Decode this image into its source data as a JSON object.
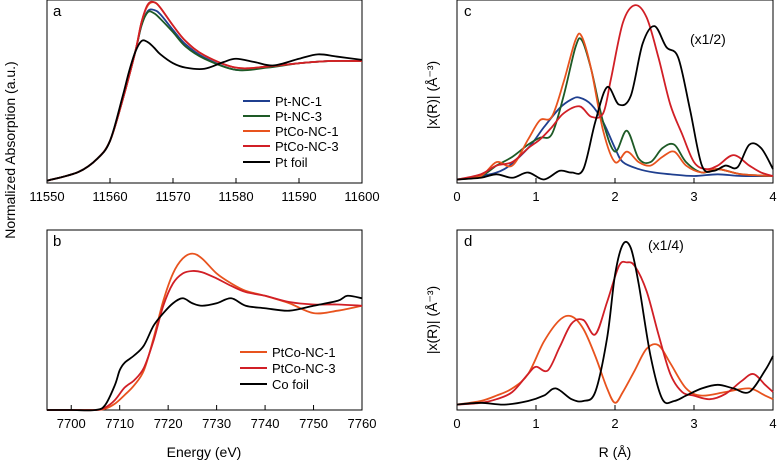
{
  "figure": {
    "shared_ylabel_left": "Normalized Absorption (a.u.)",
    "shared_xlabel_left": "Energy (eV)",
    "shared_xlabel_right": "R (Å)"
  },
  "colors": {
    "Pt-NC-1": "#1f3f8f",
    "Pt-NC-3": "#1e5a26",
    "PtCo-NC-1": "#e8531e",
    "PtCo-NC-3": "#d11f26",
    "Pt foil": "#000000",
    "Co foil": "#000000"
  },
  "chart_data": [
    {
      "panel": "a",
      "type": "line",
      "xlabel": "",
      "ylabel": "Normalized Absorption (a.u.)",
      "xlim": [
        11550,
        11600
      ],
      "ylim": [
        0,
        1.65
      ],
      "xticks": [
        11550,
        11560,
        11570,
        11580,
        11590,
        11600
      ],
      "legend": "bottom-right",
      "series": [
        {
          "name": "Pt-NC-1",
          "x": [
            11550,
            11555,
            11558,
            11560,
            11562,
            11564,
            11565,
            11566,
            11567,
            11568,
            11570,
            11572,
            11575,
            11580,
            11585,
            11590,
            11595,
            11600
          ],
          "y": [
            0.02,
            0.1,
            0.22,
            0.38,
            0.75,
            1.18,
            1.42,
            1.55,
            1.56,
            1.52,
            1.38,
            1.25,
            1.13,
            1.02,
            1.05,
            1.08,
            1.1,
            1.1
          ]
        },
        {
          "name": "Pt-NC-3",
          "x": [
            11550,
            11555,
            11558,
            11560,
            11562,
            11564,
            11565,
            11566,
            11567,
            11568,
            11570,
            11572,
            11575,
            11580,
            11585,
            11590,
            11595,
            11600
          ],
          "y": [
            0.02,
            0.1,
            0.22,
            0.38,
            0.75,
            1.18,
            1.42,
            1.54,
            1.53,
            1.48,
            1.36,
            1.23,
            1.12,
            1.02,
            1.04,
            1.08,
            1.1,
            1.1
          ]
        },
        {
          "name": "PtCo-NC-1",
          "x": [
            11550,
            11555,
            11558,
            11560,
            11562,
            11564,
            11565,
            11566,
            11567,
            11568,
            11570,
            11572,
            11575,
            11580,
            11585,
            11590,
            11595,
            11600
          ],
          "y": [
            0.02,
            0.1,
            0.22,
            0.38,
            0.75,
            1.18,
            1.45,
            1.6,
            1.63,
            1.58,
            1.42,
            1.28,
            1.15,
            1.04,
            1.05,
            1.08,
            1.1,
            1.1
          ]
        },
        {
          "name": "PtCo-NC-3",
          "x": [
            11550,
            11555,
            11558,
            11560,
            11562,
            11564,
            11565,
            11566,
            11567,
            11568,
            11570,
            11572,
            11575,
            11580,
            11585,
            11590,
            11595,
            11600
          ],
          "y": [
            0.02,
            0.1,
            0.22,
            0.38,
            0.75,
            1.18,
            1.45,
            1.61,
            1.63,
            1.58,
            1.42,
            1.28,
            1.15,
            1.04,
            1.05,
            1.08,
            1.1,
            1.1
          ]
        },
        {
          "name": "Pt foil",
          "x": [
            11550,
            11555,
            11558,
            11560,
            11562,
            11563,
            11564,
            11565,
            11566,
            11567,
            11568,
            11570,
            11572,
            11575,
            11578,
            11580,
            11583,
            11586,
            11590,
            11593,
            11596,
            11600
          ],
          "y": [
            0.02,
            0.1,
            0.22,
            0.38,
            0.78,
            1.0,
            1.18,
            1.28,
            1.27,
            1.22,
            1.16,
            1.08,
            1.04,
            1.03,
            1.09,
            1.12,
            1.09,
            1.06,
            1.12,
            1.16,
            1.14,
            1.11
          ]
        }
      ]
    },
    {
      "panel": "b",
      "type": "line",
      "xlabel": "Energy (eV)",
      "ylabel": "",
      "xlim": [
        7695,
        7760
      ],
      "ylim": [
        0,
        1.45
      ],
      "xticks": [
        7700,
        7710,
        7720,
        7730,
        7740,
        7750,
        7760
      ],
      "legend": "bottom-right",
      "series": [
        {
          "name": "PtCo-NC-1",
          "x": [
            7695,
            7700,
            7705,
            7707,
            7709,
            7711,
            7713,
            7715,
            7717,
            7719,
            7721,
            7723,
            7725,
            7727,
            7730,
            7733,
            7736,
            7740,
            7745,
            7750,
            7755,
            7760
          ],
          "y": [
            0.0,
            0.0,
            0.0,
            0.01,
            0.05,
            0.12,
            0.2,
            0.32,
            0.58,
            0.88,
            1.1,
            1.22,
            1.26,
            1.22,
            1.1,
            1.02,
            0.96,
            0.92,
            0.86,
            0.78,
            0.8,
            0.84
          ]
        },
        {
          "name": "PtCo-NC-3",
          "x": [
            7695,
            7700,
            7705,
            7707,
            7709,
            7711,
            7713,
            7715,
            7717,
            7719,
            7721,
            7723,
            7725,
            7727,
            7730,
            7733,
            7736,
            7740,
            7745,
            7750,
            7755,
            7760
          ],
          "y": [
            0.0,
            0.0,
            0.0,
            0.02,
            0.08,
            0.18,
            0.24,
            0.34,
            0.56,
            0.84,
            1.02,
            1.1,
            1.12,
            1.11,
            1.06,
            1.0,
            0.95,
            0.92,
            0.87,
            0.85,
            0.85,
            0.84
          ]
        },
        {
          "name": "Co foil",
          "x": [
            7695,
            7700,
            7705,
            7707,
            7709,
            7710,
            7711,
            7713,
            7715,
            7717,
            7719,
            7721,
            7723,
            7725,
            7727,
            7730,
            7733,
            7736,
            7740,
            7745,
            7750,
            7755,
            7757,
            7760
          ],
          "y": [
            0.0,
            0.0,
            0.0,
            0.04,
            0.2,
            0.32,
            0.38,
            0.44,
            0.52,
            0.68,
            0.78,
            0.86,
            0.9,
            0.86,
            0.84,
            0.86,
            0.9,
            0.84,
            0.82,
            0.8,
            0.84,
            0.88,
            0.92,
            0.9
          ]
        }
      ]
    },
    {
      "panel": "c",
      "type": "line",
      "xlabel": "",
      "ylabel": "|x(R)| (Å⁻³)",
      "xlim": [
        0,
        4
      ],
      "ylim": [
        0,
        1.05
      ],
      "xticks": [
        0,
        1,
        2,
        3,
        4
      ],
      "annotation": "(x1/2)",
      "series": [
        {
          "name": "Pt-NC-1",
          "x": [
            0,
            0.3,
            0.6,
            0.9,
            1.1,
            1.3,
            1.45,
            1.55,
            1.7,
            1.85,
            2.0,
            2.1,
            2.3,
            2.5,
            2.7,
            3.0,
            3.3,
            3.6,
            4.0
          ],
          "y": [
            0.02,
            0.04,
            0.08,
            0.2,
            0.32,
            0.43,
            0.48,
            0.49,
            0.45,
            0.35,
            0.2,
            0.12,
            0.08,
            0.06,
            0.05,
            0.04,
            0.05,
            0.04,
            0.04
          ]
        },
        {
          "name": "Pt-NC-3",
          "x": [
            0,
            0.3,
            0.5,
            0.7,
            0.9,
            1.05,
            1.2,
            1.35,
            1.5,
            1.58,
            1.7,
            1.85,
            2.0,
            2.15,
            2.3,
            2.45,
            2.6,
            2.75,
            2.9,
            3.1,
            3.3,
            3.6,
            4.0
          ],
          "y": [
            0.02,
            0.04,
            0.1,
            0.15,
            0.22,
            0.26,
            0.28,
            0.5,
            0.78,
            0.82,
            0.65,
            0.35,
            0.18,
            0.3,
            0.14,
            0.12,
            0.2,
            0.22,
            0.12,
            0.06,
            0.08,
            0.05,
            0.04
          ]
        },
        {
          "name": "PtCo-NC-1",
          "x": [
            0,
            0.3,
            0.5,
            0.7,
            0.9,
            1.05,
            1.2,
            1.35,
            1.5,
            1.58,
            1.7,
            1.85,
            2.0,
            2.15,
            2.3,
            2.45,
            2.6,
            2.75,
            2.9,
            3.1,
            3.3,
            3.6,
            4.0
          ],
          "y": [
            0.02,
            0.04,
            0.12,
            0.1,
            0.25,
            0.36,
            0.38,
            0.58,
            0.82,
            0.84,
            0.65,
            0.3,
            0.12,
            0.18,
            0.12,
            0.1,
            0.15,
            0.18,
            0.1,
            0.06,
            0.08,
            0.05,
            0.04
          ]
        },
        {
          "name": "PtCo-NC-3",
          "x": [
            0,
            0.3,
            0.5,
            0.7,
            0.9,
            1.05,
            1.2,
            1.35,
            1.55,
            1.7,
            1.85,
            1.95,
            2.1,
            2.25,
            2.4,
            2.55,
            2.7,
            2.85,
            3.0,
            3.15,
            3.3,
            3.5,
            3.7,
            3.85,
            4.0
          ],
          "y": [
            0.02,
            0.05,
            0.1,
            0.12,
            0.2,
            0.25,
            0.32,
            0.4,
            0.44,
            0.38,
            0.4,
            0.6,
            0.92,
            1.02,
            0.95,
            0.72,
            0.45,
            0.28,
            0.12,
            0.08,
            0.1,
            0.16,
            0.1,
            0.06,
            0.04
          ]
        },
        {
          "name": "Pt foil",
          "x": [
            0,
            0.3,
            0.5,
            0.7,
            0.9,
            1.1,
            1.3,
            1.45,
            1.6,
            1.75,
            1.9,
            2.05,
            2.2,
            2.35,
            2.5,
            2.65,
            2.8,
            2.95,
            3.1,
            3.25,
            3.4,
            3.55,
            3.7,
            3.85,
            4.0
          ],
          "y": [
            0.02,
            0.03,
            0.05,
            0.03,
            0.06,
            0.02,
            0.07,
            0.06,
            0.08,
            0.35,
            0.55,
            0.45,
            0.5,
            0.8,
            0.9,
            0.78,
            0.72,
            0.42,
            0.1,
            0.07,
            0.1,
            0.09,
            0.22,
            0.2,
            0.08
          ]
        }
      ]
    },
    {
      "panel": "d",
      "type": "line",
      "xlabel": "R (Å)",
      "ylabel": "|x(R)| (Å⁻³)",
      "xlim": [
        0,
        4
      ],
      "ylim": [
        0,
        1.0
      ],
      "xticks": [
        0,
        1,
        2,
        3,
        4
      ],
      "annotation": "(x1/4)",
      "series": [
        {
          "name": "PtCo-NC-1",
          "x": [
            0,
            0.3,
            0.5,
            0.7,
            0.9,
            1.1,
            1.3,
            1.45,
            1.6,
            1.75,
            1.9,
            2.0,
            2.1,
            2.25,
            2.4,
            2.55,
            2.7,
            2.9,
            3.1,
            3.4,
            3.7,
            3.9,
            4.0
          ],
          "y": [
            0.03,
            0.05,
            0.08,
            0.12,
            0.2,
            0.38,
            0.5,
            0.52,
            0.45,
            0.3,
            0.12,
            0.04,
            0.1,
            0.22,
            0.34,
            0.36,
            0.26,
            0.12,
            0.08,
            0.1,
            0.12,
            0.08,
            0.06
          ]
        },
        {
          "name": "PtCo-NC-3",
          "x": [
            0,
            0.3,
            0.5,
            0.7,
            0.9,
            1.0,
            1.15,
            1.3,
            1.45,
            1.6,
            1.75,
            1.9,
            2.05,
            2.15,
            2.25,
            2.4,
            2.55,
            2.7,
            2.85,
            3.0,
            3.2,
            3.4,
            3.6,
            3.75,
            3.9,
            4.0
          ],
          "y": [
            0.03,
            0.04,
            0.06,
            0.1,
            0.2,
            0.24,
            0.22,
            0.35,
            0.48,
            0.5,
            0.42,
            0.6,
            0.8,
            0.82,
            0.8,
            0.66,
            0.42,
            0.2,
            0.1,
            0.08,
            0.06,
            0.09,
            0.16,
            0.2,
            0.14,
            0.1
          ]
        },
        {
          "name": "Co foil",
          "x": [
            0,
            0.3,
            0.6,
            0.9,
            1.1,
            1.25,
            1.45,
            1.6,
            1.75,
            1.9,
            2.0,
            2.1,
            2.2,
            2.3,
            2.45,
            2.6,
            2.75,
            2.9,
            3.1,
            3.3,
            3.5,
            3.7,
            3.9,
            4.0
          ],
          "y": [
            0.03,
            0.04,
            0.03,
            0.05,
            0.08,
            0.12,
            0.06,
            0.05,
            0.1,
            0.4,
            0.75,
            0.92,
            0.9,
            0.7,
            0.3,
            0.06,
            0.05,
            0.08,
            0.12,
            0.14,
            0.12,
            0.1,
            0.22,
            0.3
          ]
        }
      ]
    }
  ],
  "panels": {
    "a": {
      "label": "a",
      "tick_labels": [
        "11550",
        "11560",
        "11570",
        "11580",
        "11590",
        "11600"
      ],
      "legend": [
        "Pt-NC-1",
        "Pt-NC-3",
        "PtCo-NC-1",
        "PtCo-NC-3",
        "Pt foil"
      ]
    },
    "b": {
      "label": "b",
      "tick_labels": [
        "7700",
        "7710",
        "7720",
        "7730",
        "7740",
        "7750",
        "7760"
      ],
      "legend": [
        "PtCo-NC-1",
        "PtCo-NC-3",
        "Co foil"
      ]
    },
    "c": {
      "label": "c",
      "tick_labels": [
        "0",
        "1",
        "2",
        "3",
        "4"
      ],
      "ylabel": "|x(R)| (Å⁻³)",
      "annotation": "(x1/2)"
    },
    "d": {
      "label": "d",
      "tick_labels": [
        "0",
        "1",
        "2",
        "3",
        "4"
      ],
      "ylabel": "|x(R)| (Å⁻³)",
      "annotation": "(x1/4)"
    }
  }
}
